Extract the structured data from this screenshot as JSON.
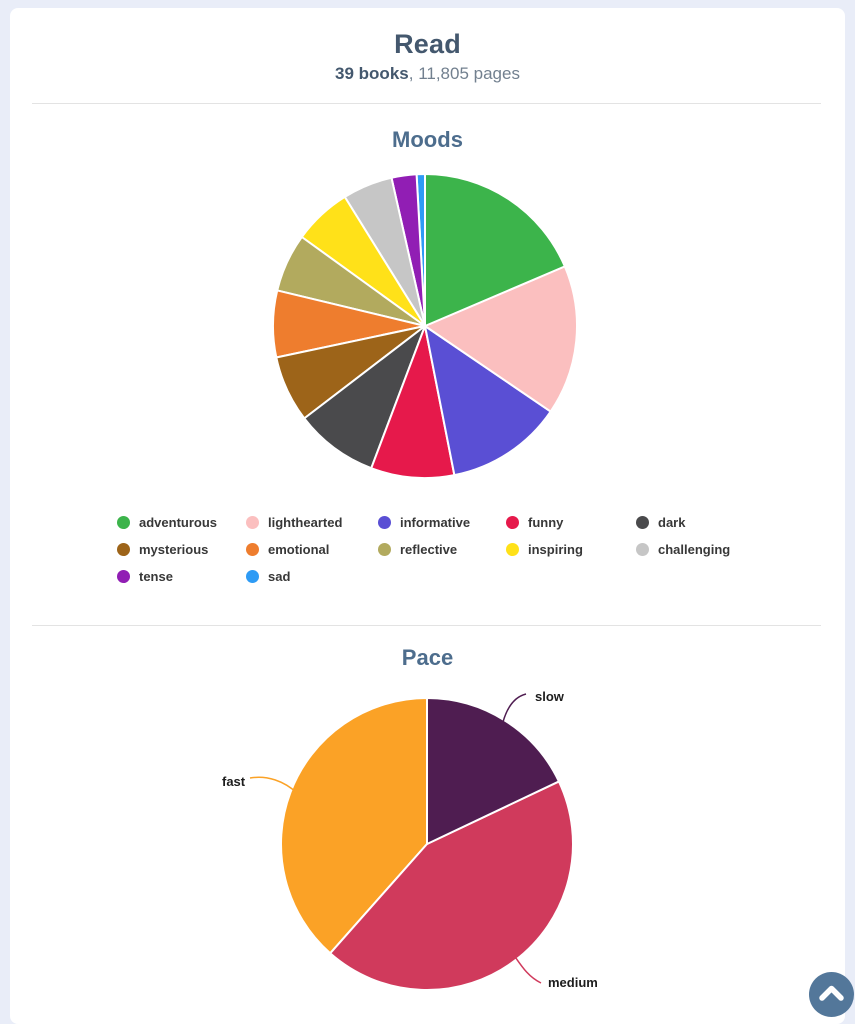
{
  "header": {
    "title": "Read",
    "books": "39 books",
    "separator": ", ",
    "pages": "11,805 pages"
  },
  "sections": {
    "moods": {
      "title": "Moods"
    },
    "pace": {
      "title": "Pace"
    }
  },
  "chart_data": [
    {
      "id": "moods",
      "type": "pie",
      "title": "Moods",
      "unit": "mood tags (values estimated from slice angles)",
      "start_angle_deg": 0,
      "direction": "clockwise",
      "legend_position": "bottom",
      "slices": [
        {
          "label": "adventurous",
          "value": 21,
          "color": "#3cb44b"
        },
        {
          "label": "lighthearted",
          "value": 18,
          "color": "#fbbfbf"
        },
        {
          "label": "informative",
          "value": 14,
          "color": "#5a4fd4"
        },
        {
          "label": "funny",
          "value": 10,
          "color": "#e6194b"
        },
        {
          "label": "dark",
          "value": 10,
          "color": "#4a4a4c"
        },
        {
          "label": "mysterious",
          "value": 8,
          "color": "#9d6419"
        },
        {
          "label": "emotional",
          "value": 8,
          "color": "#ee7d2e"
        },
        {
          "label": "reflective",
          "value": 7,
          "color": "#b2aa5e"
        },
        {
          "label": "inspiring",
          "value": 7,
          "color": "#ffe119"
        },
        {
          "label": "challenging",
          "value": 6,
          "color": "#c6c6c6"
        },
        {
          "label": "tense",
          "value": 3,
          "color": "#911eb4"
        },
        {
          "label": "sad",
          "value": 1,
          "color": "#2e9bf5"
        }
      ]
    },
    {
      "id": "pace",
      "type": "pie",
      "title": "Pace",
      "unit": "books",
      "start_angle_deg": 0,
      "direction": "clockwise",
      "labels": "callout",
      "slices": [
        {
          "label": "slow",
          "value": 7,
          "color": "#4f1d51"
        },
        {
          "label": "medium",
          "value": 17,
          "color": "#d03a5c"
        },
        {
          "label": "fast",
          "value": 15,
          "color": "#fba226"
        }
      ]
    }
  ],
  "scroll_top_button": {
    "icon": "chevron-up-icon"
  },
  "colors": {
    "page_bg": "#e9edf8",
    "card_bg": "#ffffff",
    "heading": "#44586e",
    "section_heading": "#4d6d8d",
    "subtitle_muted": "#72808f",
    "divider": "#e3e3e3",
    "legend_text": "#383838",
    "callout_text": "#1d1d1d",
    "scroll_button": "#53779a"
  }
}
